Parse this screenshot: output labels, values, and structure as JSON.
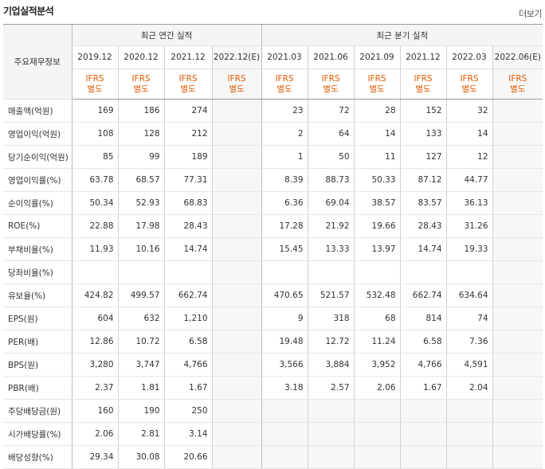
{
  "header": {
    "title": "기업실적분석",
    "more_label": "더보기"
  },
  "table": {
    "label_header": "주요재무정보",
    "annual_group": "최근 연간 실적",
    "quarter_group": "최근 분기 실적",
    "annual_periods": [
      "2019.12",
      "2020.12",
      "2021.12",
      "2022.12(E)"
    ],
    "quarter_periods": [
      "2021.03",
      "2021.06",
      "2021.09",
      "2021.12",
      "2022.03",
      "2022.06(E)"
    ],
    "standard_line1": "IFRS",
    "standard_line2": "별도",
    "rows": [
      {
        "label": "매출액(억원)",
        "annual": [
          "169",
          "186",
          "274",
          ""
        ],
        "quarter": [
          "23",
          "72",
          "28",
          "152",
          "32",
          ""
        ]
      },
      {
        "label": "영업이익(억원)",
        "annual": [
          "108",
          "128",
          "212",
          ""
        ],
        "quarter": [
          "2",
          "64",
          "14",
          "133",
          "14",
          ""
        ]
      },
      {
        "label": "당기순이익(억원)",
        "annual": [
          "85",
          "99",
          "189",
          ""
        ],
        "quarter": [
          "1",
          "50",
          "11",
          "127",
          "12",
          ""
        ]
      },
      {
        "label": "영업이익률(%)",
        "annual": [
          "63.78",
          "68.57",
          "77.31",
          ""
        ],
        "quarter": [
          "8.39",
          "88.73",
          "50.33",
          "87.12",
          "44.77",
          ""
        ]
      },
      {
        "label": "순이익률(%)",
        "annual": [
          "50.34",
          "52.93",
          "68.83",
          ""
        ],
        "quarter": [
          "6.36",
          "69.04",
          "38.57",
          "83.57",
          "36.13",
          ""
        ]
      },
      {
        "label": "ROE(%)",
        "annual": [
          "22.88",
          "17.98",
          "28.43",
          ""
        ],
        "quarter": [
          "17.28",
          "21.92",
          "19.66",
          "28.43",
          "31.26",
          ""
        ]
      },
      {
        "label": "부채비율(%)",
        "annual": [
          "11.93",
          "10.16",
          "14.74",
          ""
        ],
        "quarter": [
          "15.45",
          "13.33",
          "13.97",
          "14.74",
          "19.33",
          ""
        ]
      },
      {
        "label": "당좌비율(%)",
        "annual": [
          "",
          "",
          "",
          ""
        ],
        "quarter": [
          "",
          "",
          "",
          "",
          "",
          ""
        ]
      },
      {
        "label": "유보율(%)",
        "annual": [
          "424.82",
          "499.57",
          "662.74",
          ""
        ],
        "quarter": [
          "470.65",
          "521.57",
          "532.48",
          "662.74",
          "634.64",
          ""
        ]
      },
      {
        "label": "EPS(원)",
        "annual": [
          "604",
          "632",
          "1,210",
          ""
        ],
        "quarter": [
          "9",
          "318",
          "68",
          "814",
          "74",
          ""
        ]
      },
      {
        "label": "PER(배)",
        "annual": [
          "12.86",
          "10.72",
          "6.58",
          ""
        ],
        "quarter": [
          "19.48",
          "12.72",
          "11.24",
          "6.58",
          "7.36",
          ""
        ]
      },
      {
        "label": "BPS(원)",
        "annual": [
          "3,280",
          "3,747",
          "4,766",
          ""
        ],
        "quarter": [
          "3,566",
          "3,884",
          "3,952",
          "4,766",
          "4,591",
          ""
        ]
      },
      {
        "label": "PBR(배)",
        "annual": [
          "2.37",
          "1.81",
          "1.67",
          ""
        ],
        "quarter": [
          "3.18",
          "2.57",
          "2.06",
          "1.67",
          "2.04",
          ""
        ]
      },
      {
        "label": "주당배당금(원)",
        "annual": [
          "160",
          "190",
          "250",
          ""
        ],
        "quarter": [
          "",
          "",
          "",
          "",
          "",
          ""
        ]
      },
      {
        "label": "시가배당률(%)",
        "annual": [
          "2.06",
          "2.81",
          "3.14",
          ""
        ],
        "quarter": [
          "",
          "",
          "",
          "",
          "",
          ""
        ]
      },
      {
        "label": "배당성향(%)",
        "annual": [
          "29.34",
          "30.08",
          "20.66",
          ""
        ],
        "quarter": [
          "",
          "",
          "",
          "",
          "",
          ""
        ]
      }
    ]
  }
}
